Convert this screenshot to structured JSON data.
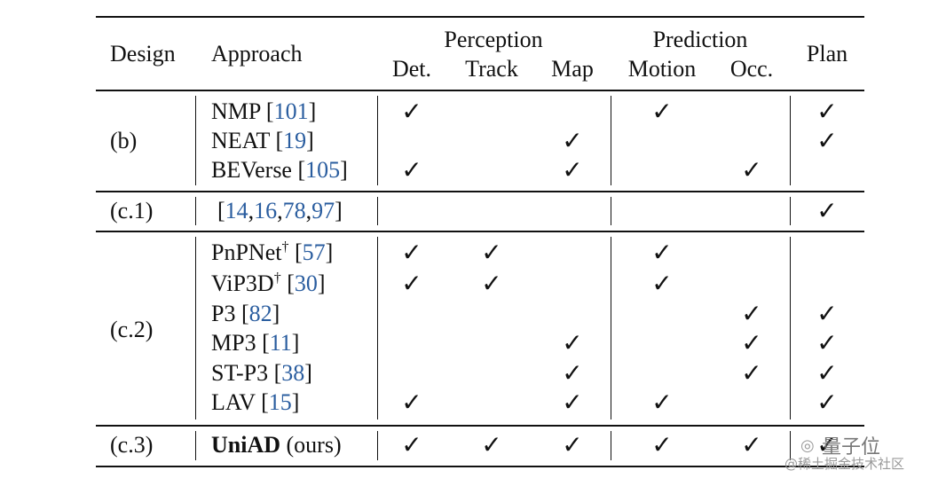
{
  "header": {
    "design": "Design",
    "approach": "Approach",
    "perception": "Perception",
    "prediction": "Prediction",
    "plan": "Plan",
    "det": "Det.",
    "track": "Track",
    "map": "Map",
    "motion": "Motion",
    "occ": "Occ."
  },
  "check_mark": "✓",
  "sections": [
    {
      "design": "(b)",
      "rows": [
        {
          "name": "NMP",
          "dagger": "",
          "cites": [
            "101"
          ],
          "checks": [
            true,
            false,
            false,
            true,
            false,
            true
          ]
        },
        {
          "name": "NEAT",
          "dagger": "",
          "cites": [
            "19"
          ],
          "checks": [
            false,
            false,
            true,
            false,
            false,
            true
          ]
        },
        {
          "name": "BEVerse",
          "dagger": "",
          "cites": [
            "105"
          ],
          "checks": [
            true,
            false,
            true,
            false,
            true,
            false
          ]
        }
      ]
    },
    {
      "design": "(c.1)",
      "rows": [
        {
          "name": "",
          "dagger": "",
          "cites": [
            "14",
            "16",
            "78",
            "97"
          ],
          "checks": [
            false,
            false,
            false,
            false,
            false,
            true
          ]
        }
      ]
    },
    {
      "design": "(c.2)",
      "rows": [
        {
          "name": "PnPNet",
          "dagger": "†",
          "cites": [
            "57"
          ],
          "checks": [
            true,
            true,
            false,
            true,
            false,
            false
          ]
        },
        {
          "name": "ViP3D",
          "dagger": "†",
          "cites": [
            "30"
          ],
          "checks": [
            true,
            true,
            false,
            true,
            false,
            false
          ]
        },
        {
          "name": "P3",
          "dagger": "",
          "cites": [
            "82"
          ],
          "checks": [
            false,
            false,
            false,
            false,
            true,
            true
          ]
        },
        {
          "name": "MP3",
          "dagger": "",
          "cites": [
            "11"
          ],
          "checks": [
            false,
            false,
            true,
            false,
            true,
            true
          ]
        },
        {
          "name": "ST-P3",
          "dagger": "",
          "cites": [
            "38"
          ],
          "checks": [
            false,
            false,
            true,
            false,
            true,
            true
          ]
        },
        {
          "name": "LAV",
          "dagger": "",
          "cites": [
            "15"
          ],
          "checks": [
            true,
            false,
            true,
            true,
            false,
            true
          ]
        }
      ]
    },
    {
      "design": "(c.3)",
      "rows": [
        {
          "name": "UniAD",
          "bold": true,
          "suffix": "(ours)",
          "dagger": "",
          "cites": [],
          "checks": [
            true,
            true,
            true,
            true,
            true,
            true
          ]
        }
      ]
    }
  ],
  "watermark": {
    "brand": "量子位",
    "sub": "@稀土掘金技术社区"
  }
}
